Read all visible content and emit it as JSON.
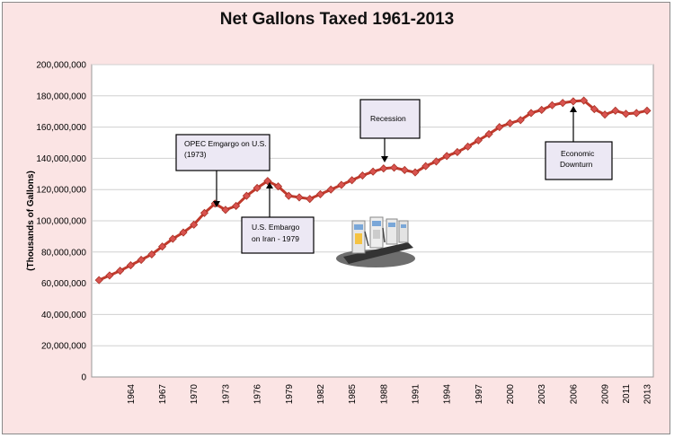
{
  "chart_data": {
    "type": "line",
    "title": "Net Gallons Taxed 1961-2013",
    "ylabel": "(Thousands of Gallons)",
    "xlabel": "",
    "ylim": [
      0,
      200000000
    ],
    "y_ticks": [
      "0",
      "20,000,000",
      "40,000,000",
      "60,000,000",
      "80,000,000",
      "100,000,000",
      "120,000,000",
      "140,000,000",
      "160,000,000",
      "180,000,000",
      "200,000,000"
    ],
    "x_ticks": [
      "1964",
      "1967",
      "1970",
      "1973",
      "1976",
      "1979",
      "1982",
      "1985",
      "1988",
      "1991",
      "1994",
      "1997",
      "2000",
      "2003",
      "2006",
      "2009",
      "2011",
      "2013"
    ],
    "grid": "horizontal",
    "colors": {
      "series": "#c0392b",
      "marker": "#d9534f",
      "frame": "#fbe4e4"
    },
    "series": [
      {
        "x": [
          1961,
          1962,
          1963,
          1964,
          1965,
          1966,
          1967,
          1968,
          1969,
          1970,
          1971,
          1972,
          1973,
          1974,
          1975,
          1976,
          1977,
          1978,
          1979,
          1980,
          1981,
          1982,
          1983,
          1984,
          1985,
          1986,
          1987,
          1988,
          1989,
          1990,
          1991,
          1992,
          1993,
          1994,
          1995,
          1996,
          1997,
          1998,
          1999,
          2000,
          2001,
          2002,
          2003,
          2004,
          2005,
          2006,
          2007,
          2008,
          2009,
          2010,
          2011,
          2012,
          2013
        ],
        "values": [
          62000000,
          65000000,
          68000000,
          71500000,
          75000000,
          78500000,
          83500000,
          88500000,
          92500000,
          97500000,
          105000000,
          111000000,
          107000000,
          109500000,
          116000000,
          121000000,
          125500000,
          122000000,
          116000000,
          115000000,
          114000000,
          117000000,
          120000000,
          123000000,
          126000000,
          129000000,
          131500000,
          133500000,
          134000000,
          132500000,
          131000000,
          135000000,
          138000000,
          141500000,
          144000000,
          147500000,
          151500000,
          155500000,
          160000000,
          162500000,
          164500000,
          169000000,
          171000000,
          174000000,
          175500000,
          176500000,
          177000000,
          171500000,
          168000000,
          170500000,
          168500000,
          169000000,
          170500000
        ]
      }
    ],
    "annotations": [
      {
        "label": "OPEC Emgargo on U.S. (1973)",
        "x": 1973,
        "y": 111000000
      },
      {
        "label": "U.S. Embargo on Iran - 1979",
        "x": 1978,
        "y": 125500000
      },
      {
        "label": "Recession",
        "x": 1989,
        "y": 134000000
      },
      {
        "label": "Economic Downturn",
        "x": 2007,
        "y": 177000000
      }
    ]
  },
  "image": {
    "name": "gas-pumps-illustration"
  }
}
